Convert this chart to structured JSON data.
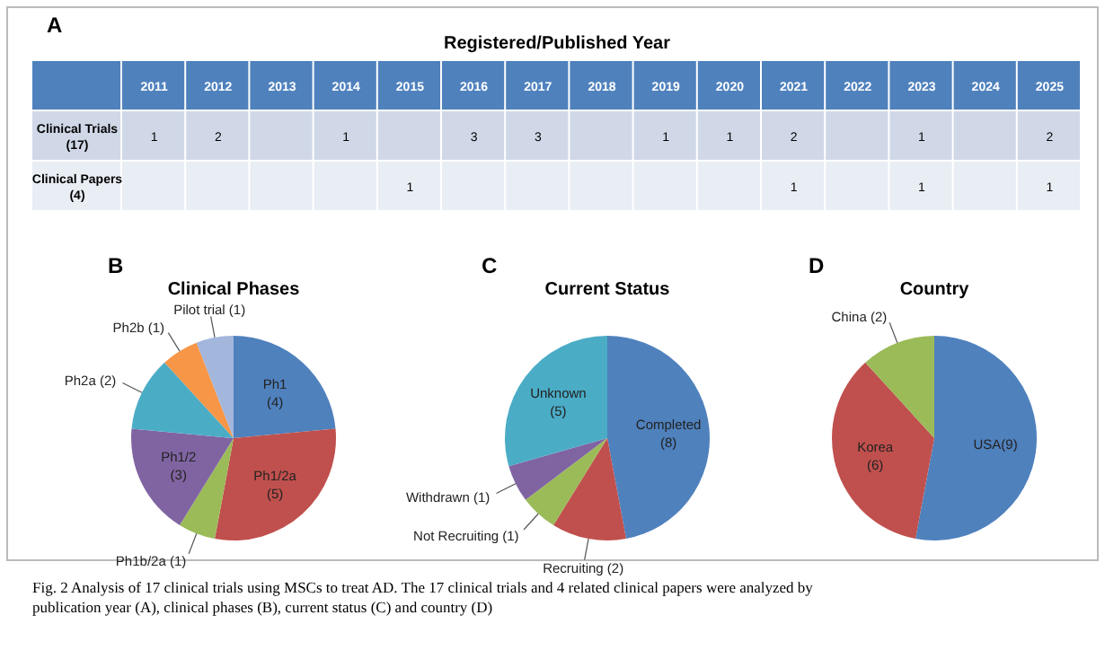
{
  "chart_data": [
    {
      "type": "heatmap",
      "data_labels": true,
      "title": "Registered/Published Year",
      "annotations": [
        "A"
      ],
      "categories": [
        "2011",
        "2012",
        "2013",
        "2014",
        "2015",
        "2016",
        "2017",
        "2018",
        "2019",
        "2020",
        "2021",
        "2022",
        "2023",
        "2024",
        "2025"
      ],
      "y_categories": [
        "Clinical Trials (17)",
        "Clinical Papers (4)"
      ],
      "cells": [
        [
          1,
          2,
          null,
          1,
          null,
          3,
          3,
          null,
          1,
          1,
          2,
          null,
          1,
          null,
          2
        ],
        [
          null,
          null,
          null,
          null,
          1,
          null,
          null,
          null,
          null,
          null,
          1,
          null,
          1,
          null,
          1
        ]
      ]
    },
    {
      "type": "pie",
      "title": "Clinical Phases",
      "annotations": [
        "B"
      ],
      "categories": [
        "Ph1 (4)",
        "Ph1/2a (5)",
        "Ph1b/2a (1)",
        "Ph1/2 (3)",
        "Ph2a (2)",
        "Ph2b (1)",
        "Pilot trial (1)"
      ],
      "values": [
        4,
        5,
        1,
        3,
        2,
        1,
        1
      ],
      "colors": [
        "#4f81bd",
        "#c0504d",
        "#9bbb59",
        "#8064a2",
        "#4bacc6",
        "#f79646",
        "#a3b6dc"
      ]
    },
    {
      "type": "pie",
      "title": "Current Status",
      "annotations": [
        "C"
      ],
      "categories": [
        "Completed (8)",
        "Recruiting (2)",
        "Not Recruiting (1)",
        "Withdrawn (1)",
        "Unknown (5)"
      ],
      "values": [
        8,
        2,
        1,
        1,
        5
      ],
      "colors": [
        "#4f81bd",
        "#c0504d",
        "#9bbb59",
        "#8064a2",
        "#4bacc6"
      ]
    },
    {
      "type": "pie",
      "title": "Country",
      "annotations": [
        "D",
        "Fig. 2 Analysis of 17 clinical trials using MSCs to treat AD. The 17 clinical trials and 4 related clinical papers were analyzed by publication year (A), clinical phases (B), current status (C) and country (D)"
      ],
      "categories": [
        "USA(9)",
        "Korea (6)",
        "China (2)"
      ],
      "values": [
        9,
        6,
        2
      ],
      "colors": [
        "#4f81bd",
        "#c0504d",
        "#9bbb59"
      ]
    }
  ]
}
